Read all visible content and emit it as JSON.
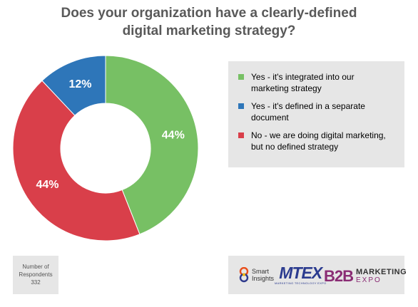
{
  "chart_data": {
    "type": "pie",
    "title_line1": "Does your organization have a clearly-defined",
    "title_line2": "digital marketing strategy?",
    "categories": [
      "Yes - it's integrated into our marketing strategy",
      "Yes - it's defined in a separate document",
      "No - we are doing digital marketing, but no defined strategy"
    ],
    "values": [
      44,
      12,
      44
    ],
    "labels": [
      "44%",
      "12%",
      "44%"
    ],
    "colors": [
      "#77c064",
      "#2e76b9",
      "#d93f4a"
    ],
    "donut": true,
    "legend_position": "right"
  },
  "legend": {
    "items": [
      {
        "line1": "Yes - it's integrated into our",
        "line2": "marketing strategy",
        "color": "#77c064"
      },
      {
        "line1": "Yes - it's defined in a separate",
        "line2": "document",
        "color": "#2e76b9"
      },
      {
        "line1": "No - we are doing digital marketing,",
        "line2": "but no defined strategy",
        "color": "#d93f4a"
      }
    ]
  },
  "respondents": {
    "line1": "Number of",
    "line2": "Respondents",
    "value": "332"
  },
  "sponsors": {
    "smart_line1": "Smart",
    "smart_line2": "Insights",
    "mtex": "MTEX",
    "mtex_sub": "MARKETING TECHNOLOGY EXPO",
    "b2b": "B2B",
    "b2b_marketing": "MARKETING",
    "b2b_expo": "EXPO"
  }
}
